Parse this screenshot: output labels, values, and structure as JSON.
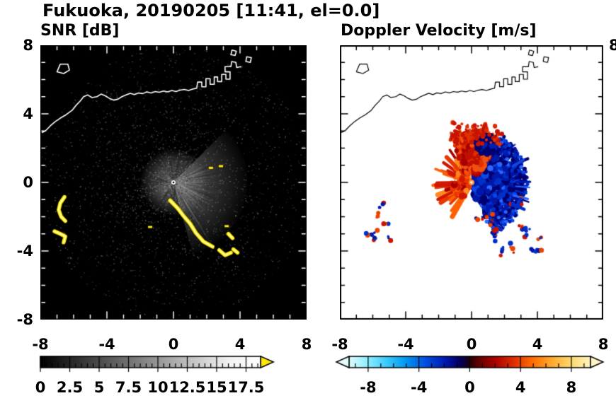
{
  "title": "Fukuoka, 20190205 [11:41, el=0.0]",
  "map": {
    "coastline_polylines": [
      [
        [
          -8.05,
          2.85
        ],
        [
          -7.7,
          3.0
        ],
        [
          -7.4,
          3.3
        ],
        [
          -7.1,
          3.55
        ],
        [
          -6.8,
          3.75
        ],
        [
          -6.45,
          3.95
        ],
        [
          -6.1,
          4.2
        ],
        [
          -5.85,
          4.5
        ],
        [
          -5.6,
          4.75
        ],
        [
          -5.4,
          5.0
        ],
        [
          -5.15,
          5.1
        ],
        [
          -4.9,
          4.95
        ],
        [
          -4.6,
          5.0
        ],
        [
          -4.35,
          5.15
        ],
        [
          -4.1,
          5.05
        ],
        [
          -3.85,
          4.9
        ],
        [
          -3.6,
          4.8
        ],
        [
          -3.35,
          4.85
        ],
        [
          -3.1,
          5.0
        ],
        [
          -2.85,
          5.1
        ],
        [
          -2.6,
          5.2
        ],
        [
          -2.35,
          5.12
        ],
        [
          -2.1,
          5.22
        ],
        [
          -1.85,
          5.18
        ],
        [
          -1.6,
          5.28
        ],
        [
          -1.35,
          5.22
        ],
        [
          -1.1,
          5.3
        ],
        [
          -0.85,
          5.26
        ],
        [
          -0.6,
          5.33
        ],
        [
          -0.35,
          5.28
        ],
        [
          -0.1,
          5.36
        ],
        [
          0.15,
          5.3
        ],
        [
          0.4,
          5.38
        ],
        [
          0.65,
          5.42
        ],
        [
          0.9,
          5.36
        ],
        [
          1.15,
          5.44
        ],
        [
          1.4,
          5.5
        ],
        [
          1.45,
          5.85
        ],
        [
          1.7,
          5.85
        ],
        [
          1.7,
          5.58
        ],
        [
          1.95,
          5.58
        ],
        [
          1.95,
          6.05
        ],
        [
          2.2,
          6.05
        ],
        [
          2.2,
          5.72
        ],
        [
          2.45,
          5.72
        ],
        [
          2.45,
          6.15
        ],
        [
          2.65,
          6.15
        ],
        [
          2.65,
          5.88
        ],
        [
          2.9,
          5.88
        ],
        [
          2.9,
          6.3
        ],
        [
          3.15,
          6.3
        ],
        [
          3.15,
          6.02
        ],
        [
          3.4,
          6.02
        ],
        [
          3.4,
          6.45
        ],
        [
          3.1,
          6.45
        ],
        [
          3.1,
          6.75
        ],
        [
          3.45,
          6.75
        ],
        [
          3.5,
          7.05
        ],
        [
          3.75,
          7.0
        ],
        [
          3.8,
          6.7
        ],
        [
          4.05,
          6.75
        ]
      ],
      [
        [
          -7.0,
          6.45
        ],
        [
          -6.6,
          6.35
        ],
        [
          -6.25,
          6.55
        ],
        [
          -6.35,
          6.9
        ],
        [
          -6.8,
          6.9
        ],
        [
          -7.0,
          6.45
        ]
      ],
      [
        [
          3.45,
          7.45
        ],
        [
          3.7,
          7.4
        ],
        [
          3.78,
          7.65
        ],
        [
          3.52,
          7.72
        ],
        [
          3.45,
          7.45
        ]
      ],
      [
        [
          4.35,
          7.05
        ],
        [
          4.62,
          7.0
        ],
        [
          4.68,
          7.28
        ],
        [
          4.4,
          7.33
        ],
        [
          4.35,
          7.05
        ]
      ]
    ]
  },
  "chart_data": [
    {
      "type": "heatmap",
      "id": "snr",
      "title": "SNR [dB]",
      "xlabel": "",
      "ylabel": "",
      "xlim": [
        -8,
        8
      ],
      "ylim": [
        -8,
        8
      ],
      "xtick_values": [
        -8,
        -4,
        0,
        4,
        8
      ],
      "xtick_labels": [
        "-8",
        "-4",
        "0",
        "4",
        "8"
      ],
      "ytick_values": [
        8,
        4,
        0,
        -4,
        -8
      ],
      "ytick_labels": [
        "8",
        "4",
        "0",
        "-4",
        "-8"
      ],
      "minor_tick_step": 1,
      "grid": false,
      "background_color": "#000000",
      "axis_tick_color": "#ffffff",
      "coastline_color": "#ffffff",
      "colorbar": {
        "orientation": "horizontal",
        "min": 0,
        "max": 18.75,
        "tick_values": [
          0,
          2.5,
          5,
          7.5,
          10,
          12.5,
          15,
          17.5
        ],
        "tick_labels": [
          "0",
          "2.5",
          "5",
          "7.5",
          "10",
          "12.5",
          "15",
          "17.5"
        ],
        "minor_step": 0.5,
        "gradient": [
          [
            0,
            "#000000"
          ],
          [
            16,
            "#f2f2f2"
          ],
          [
            18.75,
            "#ffffff"
          ]
        ],
        "over_arrow_color": "#ffe800"
      },
      "radar": {
        "center": [
          0,
          0
        ],
        "unit": "dB",
        "bright_fan_deg": [
          -45,
          75
        ],
        "secondary_fan_deg": [
          200,
          242
        ],
        "dark_sector_deg": [
          110,
          170
        ],
        "clutter_color": "#ffe800",
        "clutter_arcs": [
          [
            [
              -6.55,
              -0.85
            ],
            [
              -6.8,
              -1.2
            ],
            [
              -6.9,
              -1.6
            ],
            [
              -6.75,
              -2.0
            ],
            [
              -6.5,
              -2.25
            ]
          ],
          [
            [
              -7.15,
              -2.85
            ],
            [
              -6.8,
              -3.0
            ],
            [
              -6.5,
              -3.15
            ],
            [
              -6.6,
              -3.5
            ]
          ],
          [
            [
              -0.2,
              -1.05
            ],
            [
              0.25,
              -1.5
            ],
            [
              0.6,
              -1.95
            ],
            [
              1.0,
              -2.4
            ],
            [
              1.35,
              -2.95
            ],
            [
              1.8,
              -3.45
            ],
            [
              2.35,
              -3.75
            ]
          ],
          [
            [
              2.75,
              -3.95
            ],
            [
              3.1,
              -4.25
            ],
            [
              3.45,
              -4.1
            ]
          ],
          [
            [
              3.3,
              -3.0
            ],
            [
              3.55,
              -3.25
            ]
          ],
          [
            [
              3.6,
              -3.9
            ],
            [
              3.85,
              -4.1
            ]
          ]
        ],
        "clutter_dashes": [
          [
            2.25,
            0.85
          ],
          [
            2.85,
            0.95
          ],
          [
            -1.4,
            -2.6
          ],
          [
            3.2,
            -2.55
          ]
        ]
      }
    },
    {
      "type": "heatmap",
      "id": "doppler",
      "title": "Doppler Velocity [m/s]",
      "xlabel": "",
      "ylabel": "",
      "xlim": [
        -8,
        8
      ],
      "ylim": [
        -8,
        8
      ],
      "xtick_values": [
        -8,
        -4,
        0,
        4,
        8
      ],
      "xtick_labels": [
        "-8",
        "-4",
        "0",
        "4",
        "8"
      ],
      "ytick_values": [
        8,
        4,
        0,
        -4,
        -8
      ],
      "ytick_labels": [
        "8",
        "4",
        "0",
        "-4",
        "-8"
      ],
      "right_edge_ytick_label": "8",
      "minor_tick_step": 1,
      "grid": false,
      "background_color": "#ffffff",
      "axis_tick_color": "#000000",
      "coastline_color": "#000000",
      "colorbar": {
        "orientation": "horizontal",
        "min": -9.5,
        "max": 9.5,
        "tick_values": [
          -8,
          -4,
          0,
          4,
          8
        ],
        "tick_labels": [
          "-8",
          "-4",
          "0",
          "4",
          "8"
        ],
        "minor_step": 1,
        "gradient": [
          [
            -9.5,
            "#e0fbff"
          ],
          [
            -8,
            "#8ceeff"
          ],
          [
            -6.5,
            "#38c8fa"
          ],
          [
            -5,
            "#0096f0"
          ],
          [
            -3.5,
            "#0050e0"
          ],
          [
            -2,
            "#001cb4"
          ],
          [
            -0.9,
            "#000068"
          ],
          [
            -0.1,
            "#14001c"
          ],
          [
            0.1,
            "#320000"
          ],
          [
            0.9,
            "#6e0000"
          ],
          [
            2,
            "#aa0000"
          ],
          [
            3.5,
            "#e03000"
          ],
          [
            5,
            "#ff7000"
          ],
          [
            6.5,
            "#ffaa30"
          ],
          [
            8,
            "#ffd970"
          ],
          [
            9.5,
            "#fff3c0"
          ]
        ],
        "under_arrow_color": "#e6fcff",
        "over_arrow_color": "#fff6c8"
      },
      "radar": {
        "center": [
          0,
          0
        ],
        "unit": "m/s",
        "lobes": [
          {
            "name": "east-lobe-negative-velocity",
            "angle_deg": [
              -58,
              66
            ],
            "radius": [
              0.25,
              3.3
            ],
            "count": 1300,
            "colors": [
              "#000070",
              "#0018a8",
              "#0030cc",
              "#0c48e8",
              "#2a66ff"
            ],
            "weights": [
              0.3,
              0.3,
              0.2,
              0.12,
              0.08
            ],
            "style": "blob"
          },
          {
            "name": "west-lobe-positive-velocity",
            "angle_deg": [
              116,
              244
            ],
            "radius": [
              0.3,
              2.4
            ],
            "count": 34,
            "colors": [
              "#a80000",
              "#d01800",
              "#e83800",
              "#ff6000",
              "#ff8820"
            ],
            "weights": [
              0.15,
              0.25,
              0.25,
              0.2,
              0.15
            ],
            "style": "streaks"
          },
          {
            "name": "north-lobe-mixed",
            "angle_deg": [
              246,
              302
            ],
            "radius": [
              0.6,
              3.1
            ],
            "count": 560,
            "colors": [
              "#c01000",
              "#e03000",
              "#f05010",
              "#a80000"
            ],
            "weights": [
              0.35,
              0.3,
              0.2,
              0.15
            ],
            "style": "blob"
          }
        ],
        "blue_patch": {
          "center": [
            0.85,
            2.2
          ],
          "radius": 0.6,
          "count": 120,
          "colors": [
            "#000070",
            "#0020b0"
          ]
        },
        "north_speckle_region": {
          "x": [
            -1.2,
            1.9
          ],
          "y": [
            2.2,
            3.5
          ],
          "count": 80,
          "colors": [
            "#c81400",
            "#e03000"
          ]
        },
        "speckle_clusters": [
          [
            -5.35,
            -1.25
          ],
          [
            -5.6,
            -1.85
          ],
          [
            -5.05,
            -2.5
          ],
          [
            -6.1,
            -2.95
          ],
          [
            -4.85,
            -3.35
          ],
          [
            -5.9,
            -3.45
          ],
          [
            1.35,
            -3.35
          ],
          [
            1.85,
            -3.75
          ],
          [
            2.55,
            -4.05
          ],
          [
            3.3,
            -3.1
          ],
          [
            3.6,
            -3.95
          ],
          [
            2.9,
            -2.6
          ],
          [
            0.35,
            -2.15
          ],
          [
            4.05,
            -3.3
          ],
          [
            2.2,
            -1.3
          ],
          [
            3.0,
            -0.85
          ],
          [
            1.2,
            -1.95
          ]
        ],
        "speckle_colors": [
          "#c81400",
          "#0018a8",
          "#e84400",
          "#0030cc"
        ]
      }
    }
  ]
}
